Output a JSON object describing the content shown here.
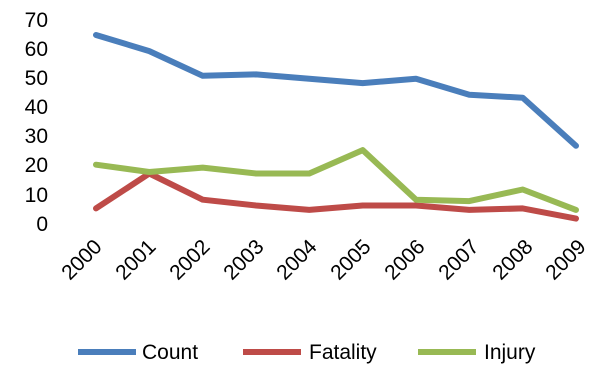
{
  "chart_data": {
    "type": "line",
    "categories": [
      "2000",
      "2001",
      "2002",
      "2003",
      "2004",
      "2005",
      "2006",
      "2007",
      "2008",
      "2009"
    ],
    "ylim": [
      0,
      70
    ],
    "yticks": [
      "0",
      "10",
      "20",
      "30",
      "40",
      "50",
      "60",
      "70"
    ],
    "grid": false,
    "legend_position": "bottom",
    "series": [
      {
        "name": "Count",
        "color": "#4a7ebb",
        "values": [
          64.5,
          59,
          50.5,
          51,
          49.5,
          48,
          49.5,
          44,
          43,
          26.5
        ]
      },
      {
        "name": "Fatality",
        "color": "#be4b48",
        "values": [
          5,
          17,
          8,
          6,
          4.5,
          6,
          6,
          4.5,
          5,
          1.5
        ]
      },
      {
        "name": "Injury",
        "color": "#98b954",
        "values": [
          20,
          17.5,
          19,
          17,
          17,
          25,
          8,
          7.5,
          11.5,
          4.5
        ]
      }
    ]
  }
}
